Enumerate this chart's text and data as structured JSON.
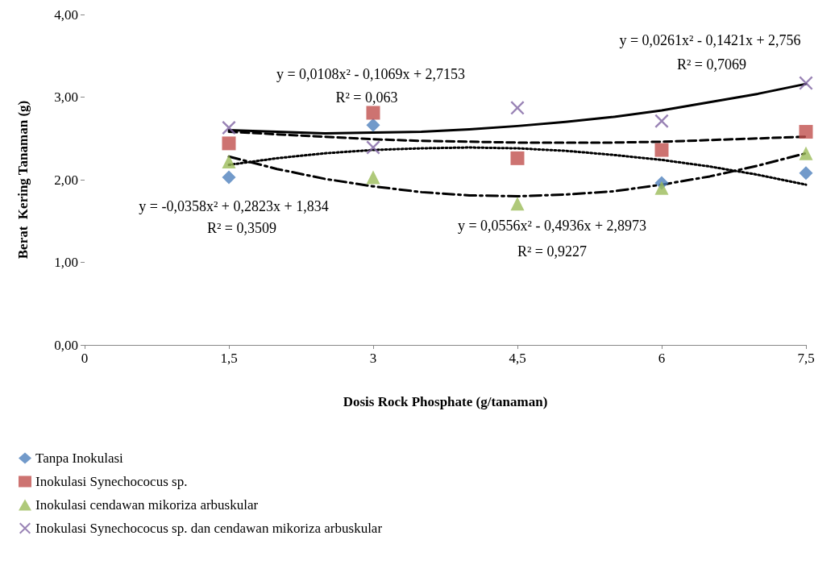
{
  "chart_data": {
    "type": "scatter",
    "xlabel": "Dosis Rock Phosphate (g/tanaman)",
    "ylabel": "Berat  Kering Tanaman (g)",
    "xlim": [
      0,
      7.5
    ],
    "xticks": [
      0,
      {
        "value": 1.5,
        "label": "1,5"
      },
      3,
      {
        "value": 4.5,
        "label": "4,5"
      },
      6,
      {
        "value": 7.5,
        "label": "7,5"
      }
    ],
    "ylim": [
      0,
      4
    ],
    "yticks": [
      {
        "value": 0,
        "label": "0,00"
      },
      {
        "value": 1,
        "label": "1,00"
      },
      {
        "value": 2,
        "label": "2,00"
      },
      {
        "value": 3,
        "label": "3,00"
      },
      {
        "value": 4,
        "label": "4,00"
      }
    ],
    "grid": false,
    "legend": "bottom",
    "x": [
      1.5,
      3,
      4.5,
      6,
      7.5
    ],
    "series": [
      {
        "name": "Tanpa Inokulasi",
        "marker": "diamond",
        "color": "#4f81bd",
        "values": [
          2.03,
          2.66,
          null,
          1.96,
          2.08
        ]
      },
      {
        "name": "Inokulasi Synechococus sp.",
        "marker": "square",
        "color": "#c0504d",
        "values": [
          2.44,
          2.81,
          2.26,
          2.36,
          2.58
        ]
      },
      {
        "name": "Inokulasi cendawan mikoriza arbuskular",
        "marker": "triangle",
        "color": "#9bbb59",
        "values": [
          2.22,
          2.03,
          1.71,
          1.9,
          2.32
        ]
      },
      {
        "name": "Inokulasi Synechococus sp. dan cendawan mikoriza arbuskular",
        "marker": "cross",
        "color": "#8064a2",
        "values": [
          2.63,
          2.39,
          2.87,
          2.71,
          3.17
        ]
      },
      {
        "type": "line",
        "marker": "none",
        "line_style": "dotted",
        "color": "#000000",
        "x": [
          1.5,
          2,
          2.5,
          3,
          3.5,
          4,
          4.5,
          5,
          5.5,
          6,
          6.5,
          7,
          7.5
        ],
        "values": [
          2.18,
          2.26,
          2.32,
          2.36,
          2.38,
          2.39,
          2.38,
          2.35,
          2.3,
          2.24,
          2.16,
          2.06,
          1.94
        ]
      },
      {
        "type": "line",
        "marker": "none",
        "line_style": "dashed",
        "color": "#000000",
        "x": [
          1.5,
          2,
          2.5,
          3,
          3.5,
          4,
          4.5,
          5,
          5.5,
          6,
          6.5,
          7,
          7.5
        ],
        "values": [
          2.58,
          2.55,
          2.52,
          2.49,
          2.47,
          2.46,
          2.45,
          2.45,
          2.45,
          2.46,
          2.48,
          2.5,
          2.52
        ]
      },
      {
        "type": "line",
        "marker": "none",
        "line_style": "dashdot",
        "color": "#000000",
        "x": [
          1.5,
          2,
          2.5,
          3,
          3.5,
          4,
          4.5,
          5,
          5.5,
          6,
          6.5,
          7,
          7.5
        ],
        "values": [
          2.28,
          2.13,
          2.01,
          1.92,
          1.85,
          1.81,
          1.8,
          1.82,
          1.86,
          1.94,
          2.04,
          2.17,
          2.32
        ]
      },
      {
        "type": "line",
        "marker": "none",
        "line_style": "solid",
        "color": "#000000",
        "x": [
          1.5,
          2,
          2.5,
          3,
          3.5,
          4,
          4.5,
          5,
          5.5,
          6,
          6.5,
          7,
          7.5
        ],
        "values": [
          2.6,
          2.58,
          2.56,
          2.57,
          2.58,
          2.61,
          2.65,
          2.7,
          2.76,
          2.84,
          2.94,
          3.04,
          3.16
        ]
      }
    ],
    "annotations": [
      "y = 0,0261x² - 0,1421x + 2,756",
      "R² = 0,7069",
      "y = 0,0108x² - 0,1069x + 2,7153",
      "R² = 0,063",
      "y = -0,0358x² + 0,2823x + 1,834",
      "R² = 0,3509",
      "y = 0,0556x² - 0,4936x + 2,8973",
      "R² = 0,9227"
    ]
  }
}
